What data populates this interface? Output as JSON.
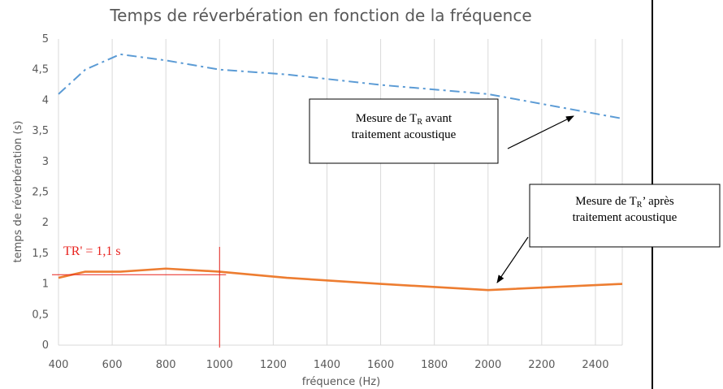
{
  "chart_data": {
    "type": "line",
    "title": "Temps  de réverbération en fonction de la fréquence",
    "xlabel": "fréquence (Hz)",
    "ylabel": "temps de réverbération (s)",
    "xlim": [
      400,
      2500
    ],
    "ylim": [
      0,
      5
    ],
    "x_ticks": [
      "400",
      "600",
      "800",
      "1000",
      "1200",
      "1400",
      "1600",
      "1800",
      "2000",
      "2200",
      "2400"
    ],
    "y_ticks": [
      "0",
      "0,5",
      "1",
      "1,5",
      "2",
      "2,5",
      "3",
      "3,5",
      "4",
      "4,5",
      "5"
    ],
    "grid": "vertical",
    "series": [
      {
        "color": "#5b9bd5",
        "style": "dash-dot",
        "points": [
          [
            400,
            4.1
          ],
          [
            500,
            4.5
          ],
          [
            630,
            4.75
          ],
          [
            800,
            4.65
          ],
          [
            1000,
            4.5
          ],
          [
            1250,
            4.42
          ],
          [
            1600,
            4.25
          ],
          [
            2000,
            4.1
          ],
          [
            2500,
            3.7
          ]
        ]
      },
      {
        "color": "#ed7d31",
        "style": "solid",
        "points": [
          [
            400,
            1.1
          ],
          [
            500,
            1.2
          ],
          [
            630,
            1.2
          ],
          [
            800,
            1.25
          ],
          [
            1000,
            1.2
          ],
          [
            1250,
            1.1
          ],
          [
            1600,
            1.0
          ],
          [
            2000,
            0.9
          ],
          [
            2500,
            1.0
          ]
        ]
      }
    ],
    "annotations": {
      "tr_label": "TR' = 1,1 s",
      "tr_value": 1.15,
      "tr_frequency": 1000,
      "note_before": {
        "prefix": "Mesure de T",
        "sub": "R",
        "suffix": " avant",
        "line2": "traitement acoustique"
      },
      "note_after": {
        "prefix": "Mesure de T",
        "sub": "R",
        "suffix": "’ après",
        "line2": "traitement acoustique"
      }
    }
  }
}
